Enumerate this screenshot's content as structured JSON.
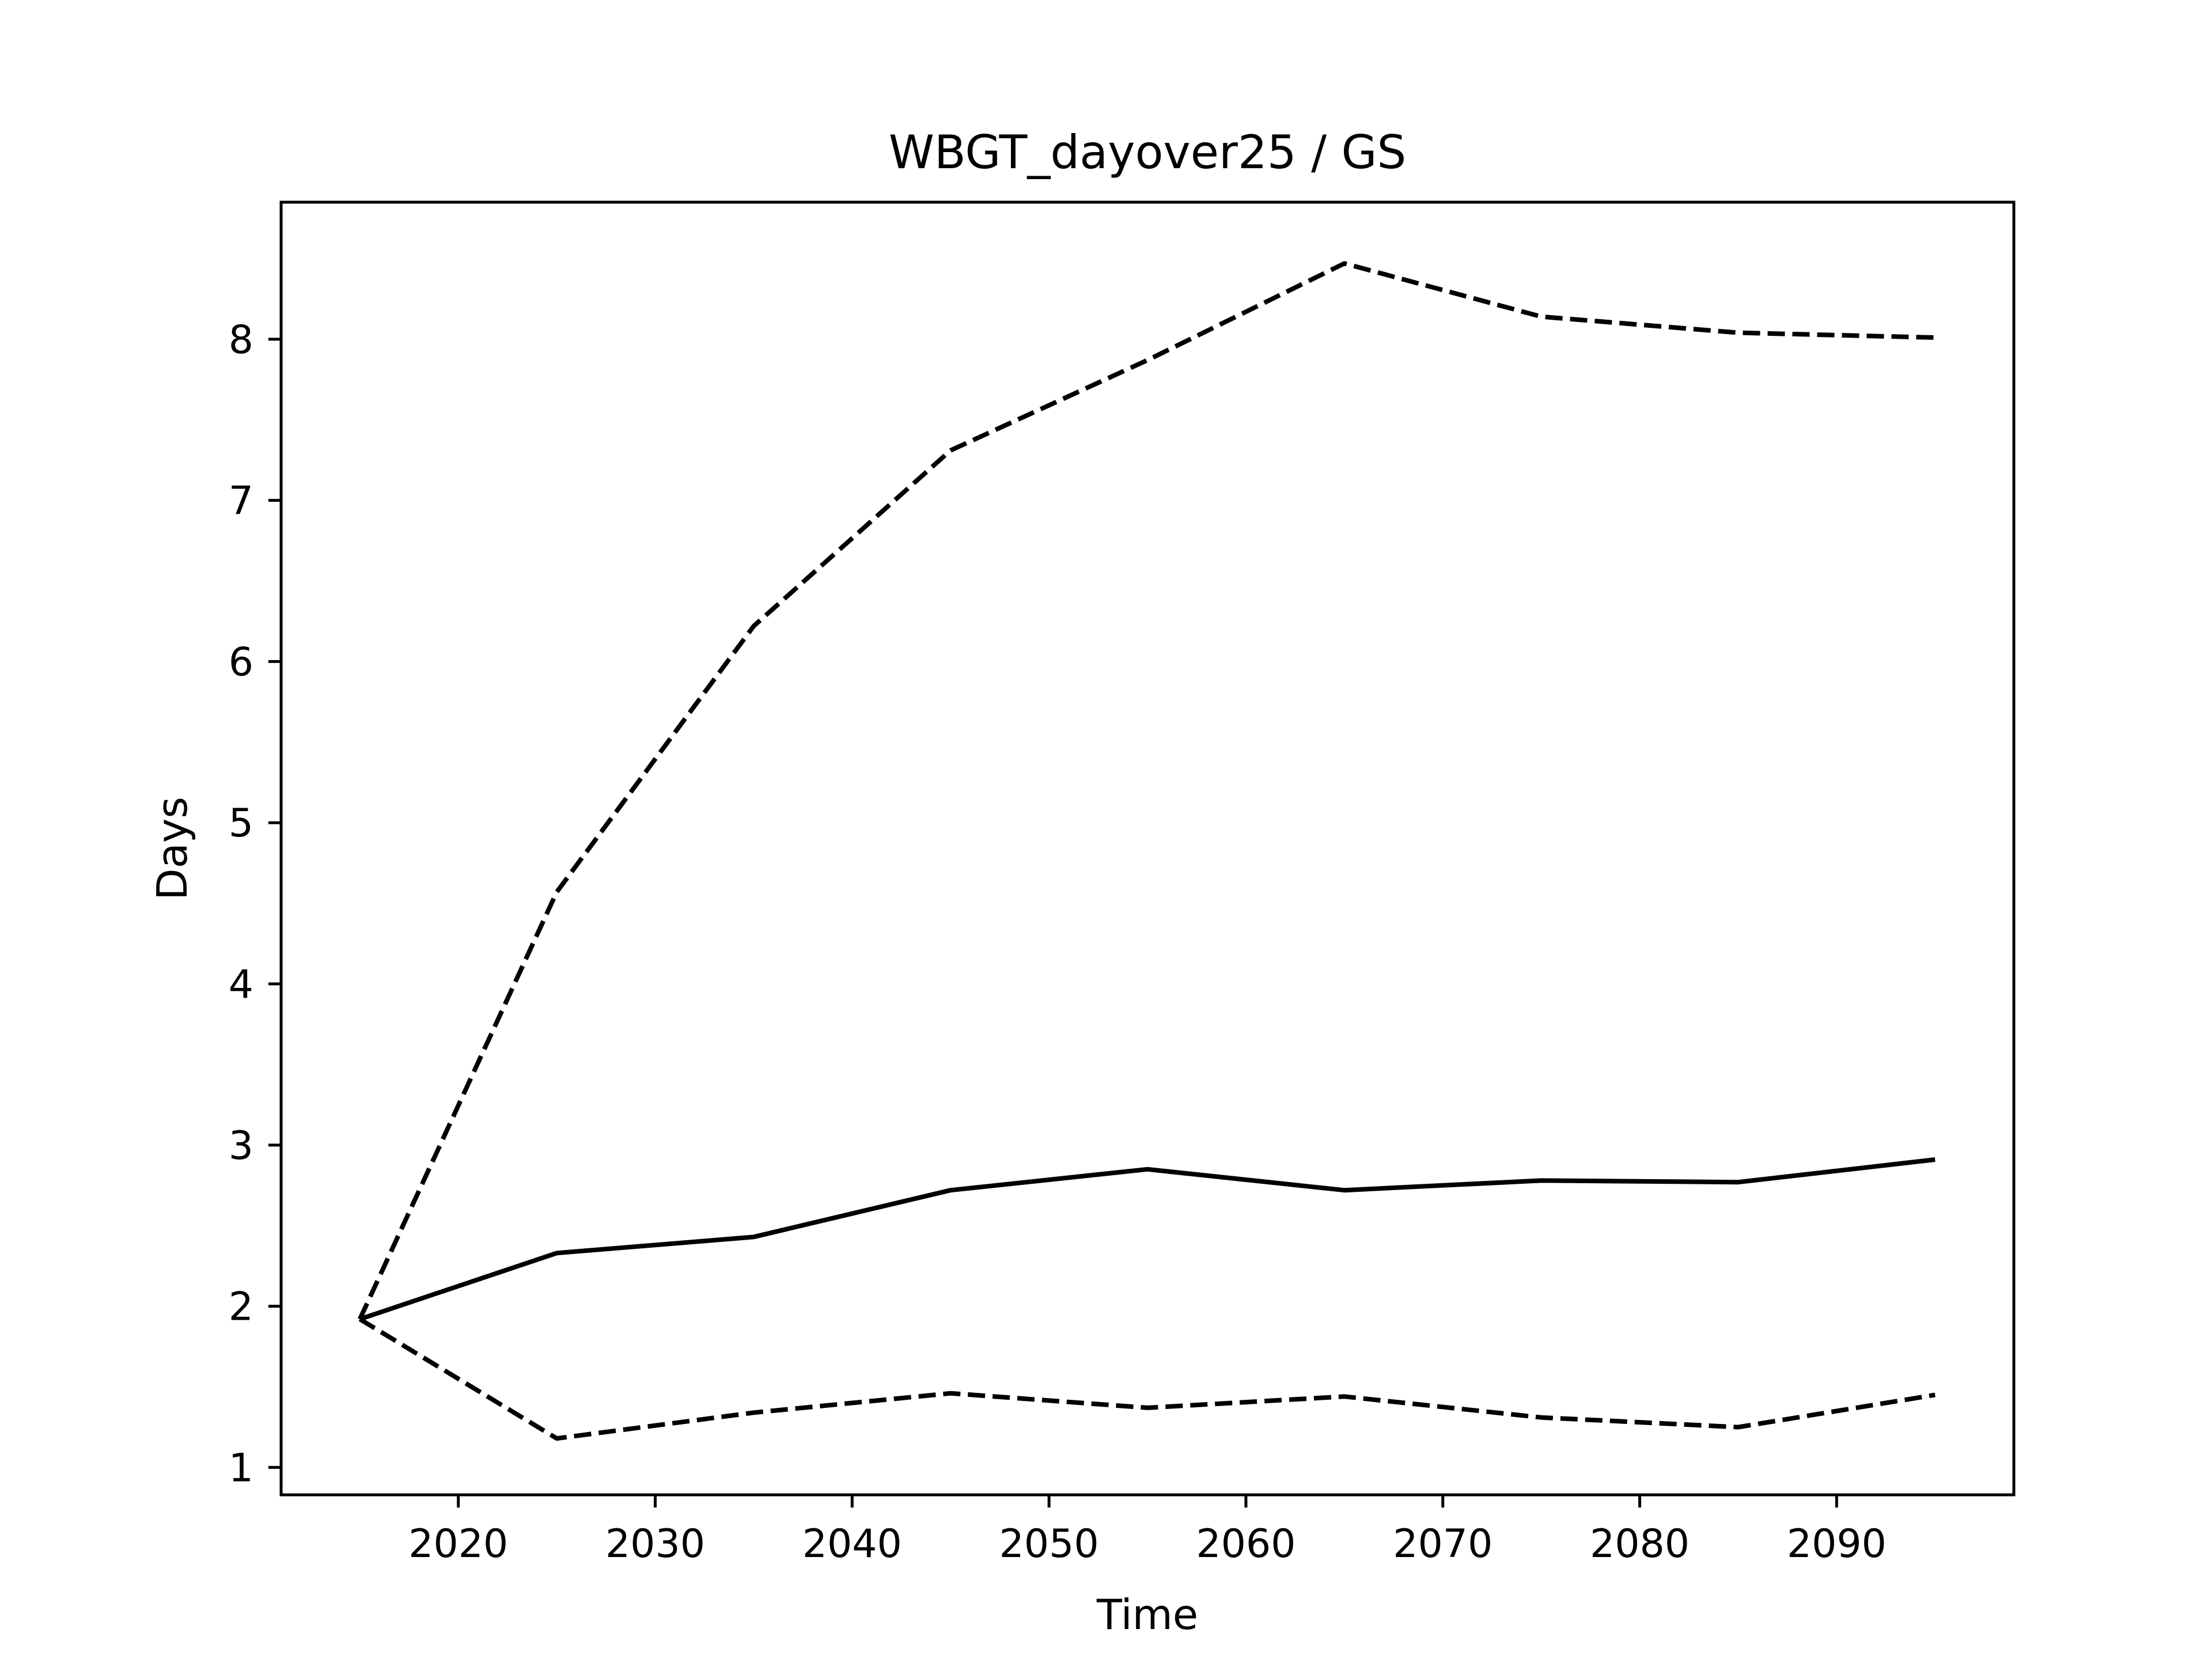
{
  "chart_data": {
    "type": "line",
    "title": "WBGT_dayover25 / GS",
    "xlabel": "Time",
    "ylabel": "Days",
    "xlim": [
      2011,
      2099
    ],
    "ylim": [
      0.83,
      8.85
    ],
    "xticks": [
      2020,
      2030,
      2040,
      2050,
      2060,
      2070,
      2080,
      2090
    ],
    "yticks": [
      1,
      2,
      3,
      4,
      5,
      6,
      7,
      8
    ],
    "grid": false,
    "legend": "none",
    "x": [
      2015,
      2025,
      2035,
      2045,
      2055,
      2065,
      2075,
      2085,
      2095
    ],
    "series": [
      {
        "style": "solid",
        "color": "#000000",
        "values": [
          1.92,
          2.33,
          2.43,
          2.72,
          2.85,
          2.72,
          2.78,
          2.77,
          2.91
        ]
      },
      {
        "style": "dashed",
        "color": "#000000",
        "values": [
          1.92,
          4.57,
          6.22,
          7.31,
          7.87,
          8.47,
          8.14,
          8.04,
          8.01
        ]
      },
      {
        "style": "dashed",
        "color": "#000000",
        "values": [
          1.92,
          1.18,
          1.34,
          1.46,
          1.37,
          1.44,
          1.31,
          1.25,
          1.45
        ]
      }
    ]
  }
}
